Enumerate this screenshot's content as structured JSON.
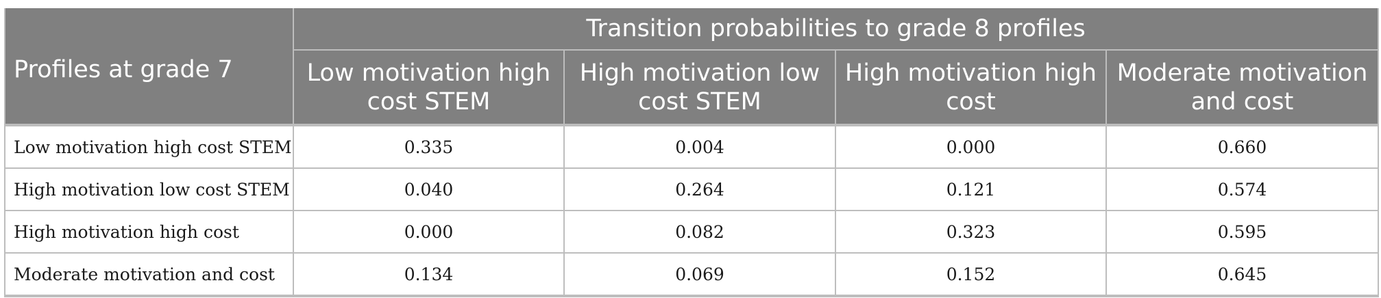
{
  "table": {
    "group_header": "Transition probabilities to grade 8 profiles",
    "row_header": "Profiles at grade 7",
    "columns": [
      "Low motivation high cost STEM",
      "High motivation low cost STEM",
      "High motivation high cost",
      "Moderate motivation and cost"
    ],
    "rows": [
      {
        "label": "Low motivation high cost STEM",
        "values": [
          "0.335",
          "0.004",
          "0.000",
          "0.660"
        ]
      },
      {
        "label": "High motivation low cost STEM",
        "values": [
          "0.040",
          "0.264",
          "0.121",
          "0.574"
        ]
      },
      {
        "label": "High motivation high cost",
        "values": [
          "0.000",
          "0.082",
          "0.323",
          "0.595"
        ]
      },
      {
        "label": "Moderate motivation and cost",
        "values": [
          "0.134",
          "0.069",
          "0.152",
          "0.645"
        ]
      }
    ]
  }
}
